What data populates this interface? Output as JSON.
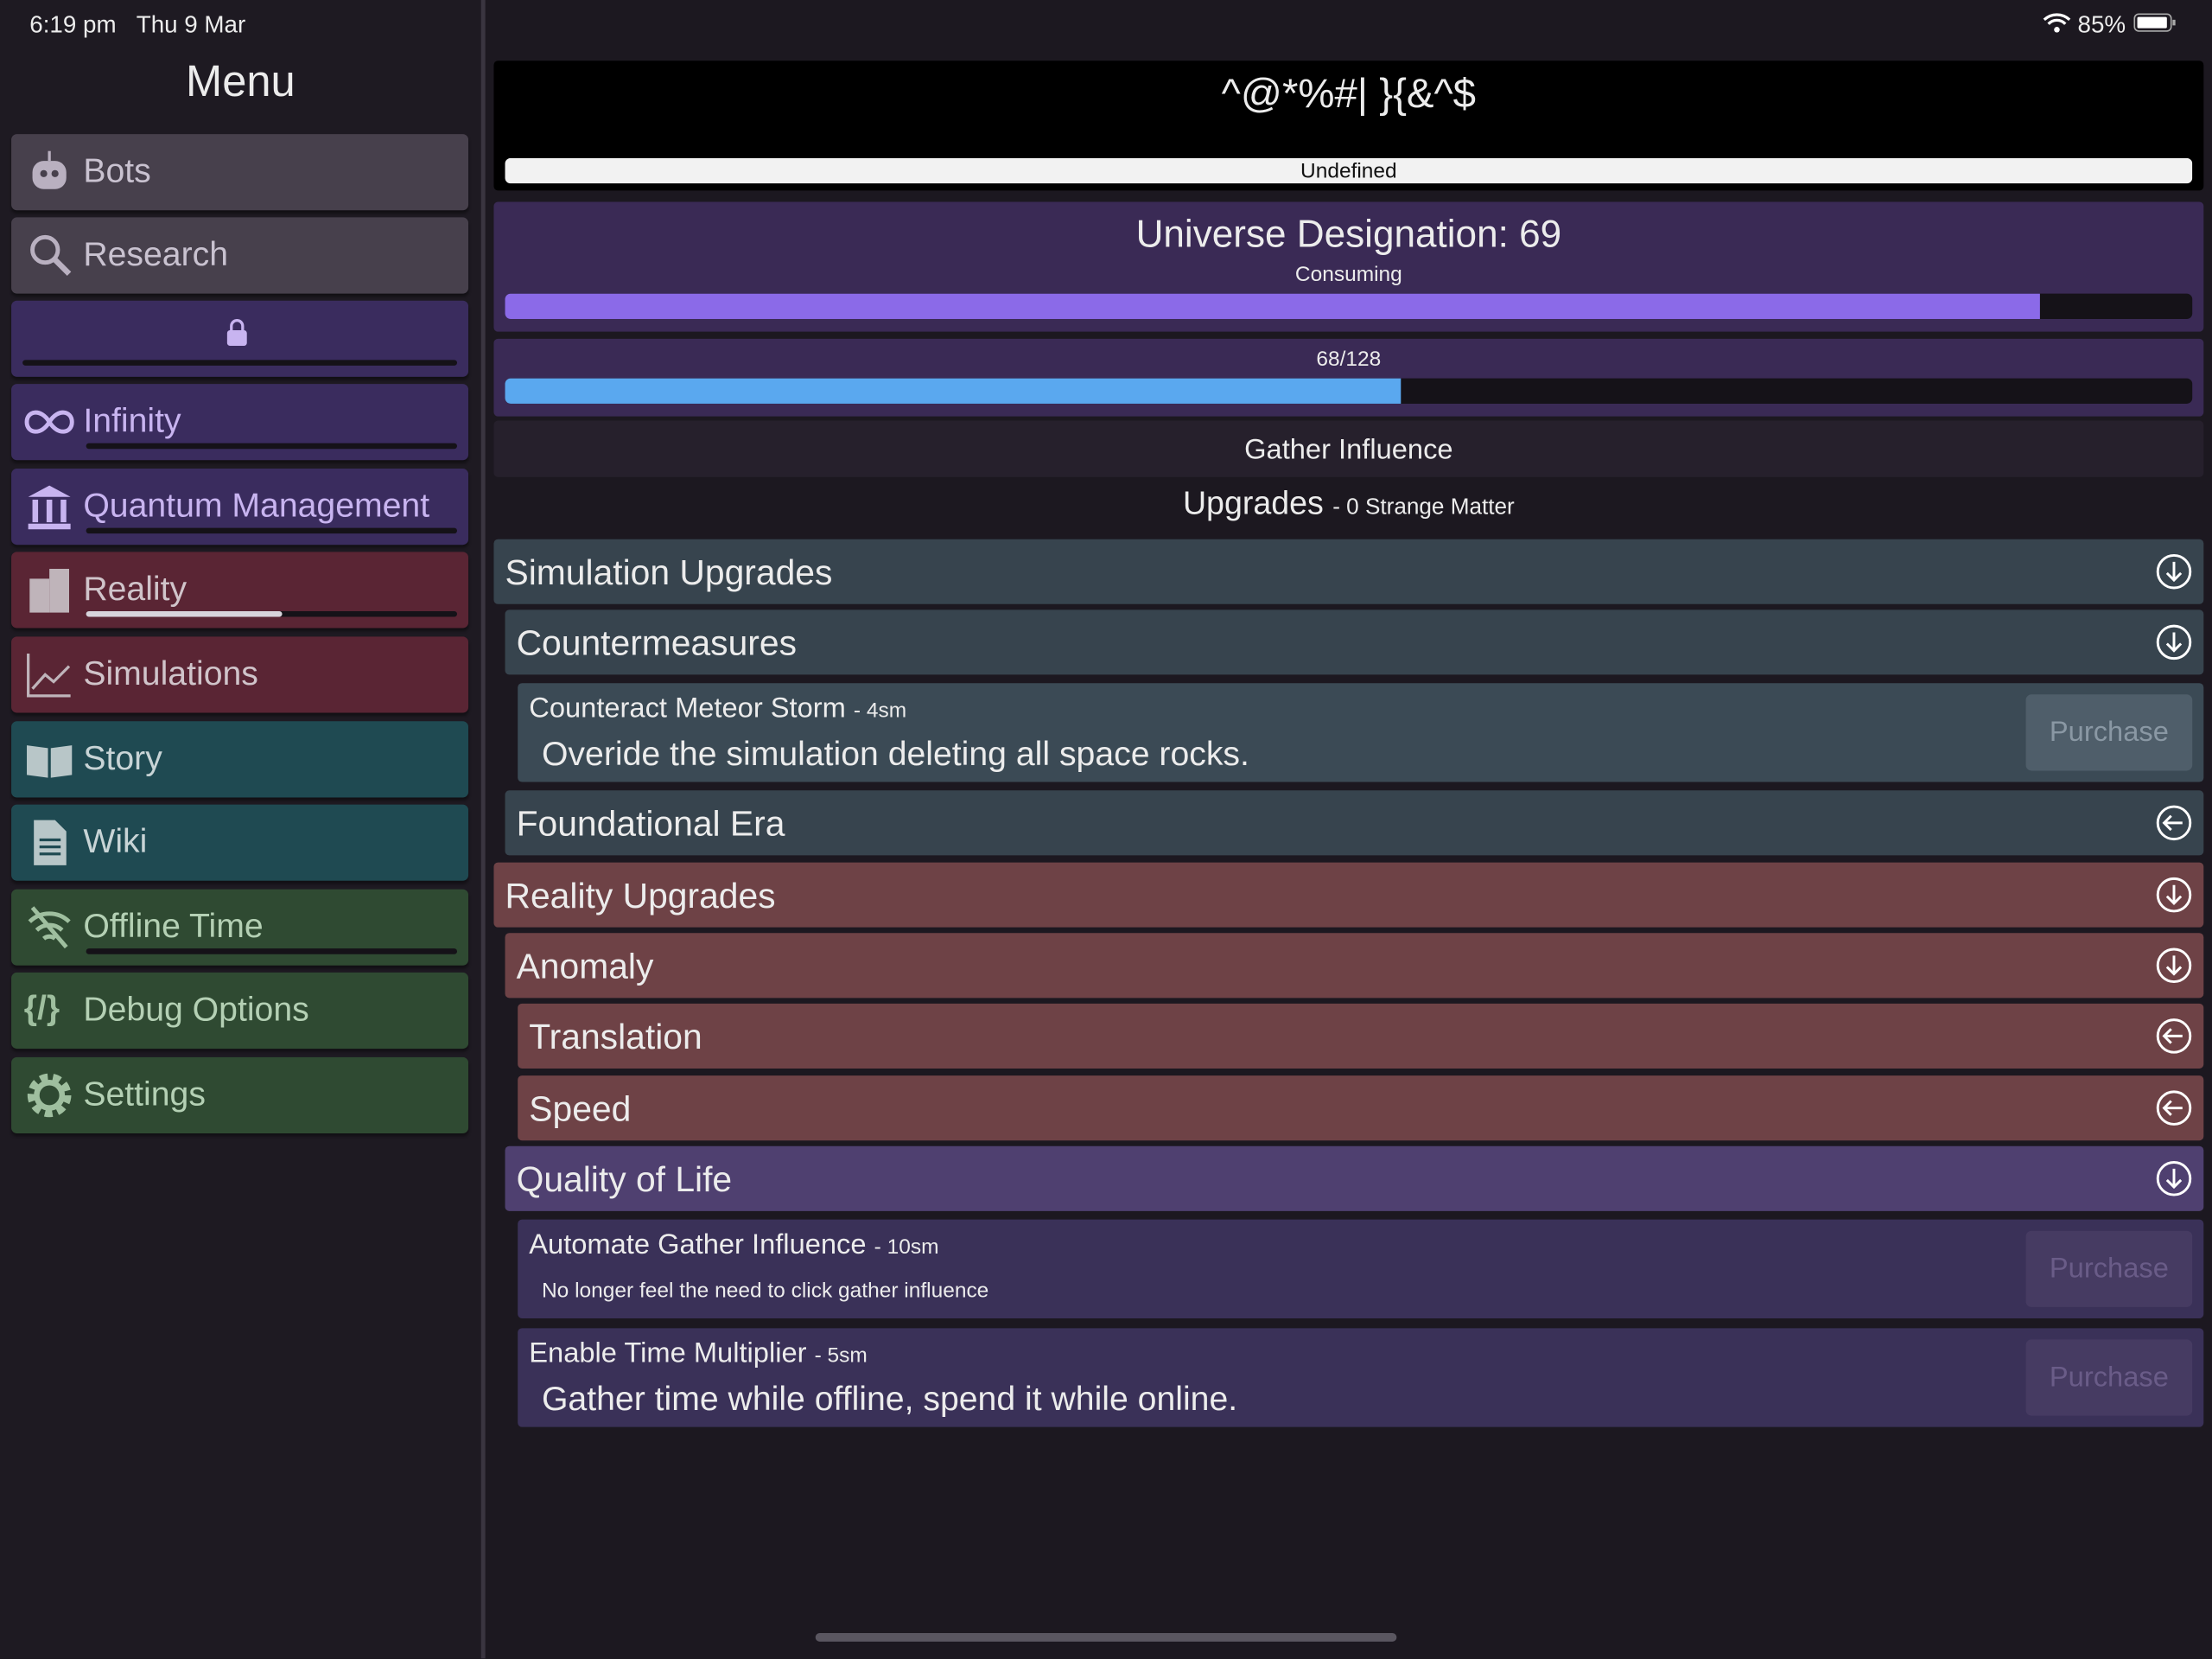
{
  "status_bar": {
    "time": "6:19 pm",
    "date": "Thu 9 Mar",
    "battery": "85%"
  },
  "menu": {
    "title": "Menu",
    "items": [
      {
        "label": "Bots"
      },
      {
        "label": "Research"
      },
      {
        "label": "Infinity",
        "progress": 0
      },
      {
        "label": "Quantum Management",
        "progress": 0
      },
      {
        "label": "Reality",
        "progress": 0.53
      },
      {
        "label": "Simulations"
      },
      {
        "label": "Story"
      },
      {
        "label": "Wiki"
      },
      {
        "label": "Offline Time",
        "progress": 0
      },
      {
        "label": "Debug Options"
      },
      {
        "label": "Settings"
      }
    ],
    "locked_progress": 0
  },
  "header": {
    "title": "^@*%#| }{&^$",
    "bar_label": "Undefined",
    "bar_progress": 1
  },
  "universe": {
    "title": "Universe Designation: 69",
    "subtitle": "Consuming",
    "progress": 0.91
  },
  "influence": {
    "label": "68/128",
    "value": 68,
    "max": 128
  },
  "gather_button": "Gather Influence",
  "upgrades": {
    "title": "Upgrades",
    "currency": "- 0 Strange Matter"
  },
  "sections": [
    {
      "title": "Simulation Upgrades",
      "groups": [
        {
          "title": "Countermeasures",
          "items": [
            {
              "name": "Counteract Meteor Storm",
              "cost": "- 4sm",
              "description": "Overide the simulation deleting all space rocks.",
              "button": "Purchase"
            }
          ]
        },
        {
          "title": "Foundational Era"
        }
      ]
    },
    {
      "title": "Reality Upgrades",
      "groups": [
        {
          "title": "Anomaly",
          "subgroups": [
            {
              "title": "Translation"
            },
            {
              "title": "Speed"
            }
          ]
        },
        {
          "title": "Quality of Life",
          "items": [
            {
              "name": "Automate Gather Influence",
              "cost": "- 10sm",
              "description": "No longer feel the need to click gather influence",
              "button": "Purchase"
            },
            {
              "name": "Enable Time Multiplier",
              "cost": "- 5sm",
              "description": "Gather time while offline, spend it while online.",
              "button": "Purchase"
            }
          ]
        }
      ]
    }
  ]
}
